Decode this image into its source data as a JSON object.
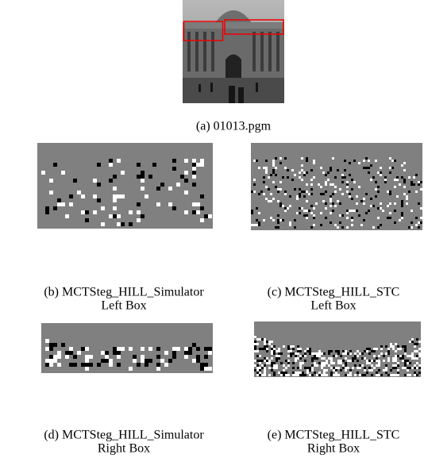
{
  "subfigures": [
    {
      "caption": "(a) 01013.pgm"
    },
    {
      "caption": "(b) MCTSteg_HILL_Simulator",
      "subcaption": "Left Box"
    },
    {
      "caption": "(c) MCTSteg_HILL_STC",
      "subcaption": "Left Box"
    },
    {
      "caption": "(d) MCTSteg_HILL_Simulator",
      "subcaption": "Right Box"
    },
    {
      "caption": "(e) MCTSteg_HILL_STC",
      "subcaption": "Right Box"
    }
  ]
}
